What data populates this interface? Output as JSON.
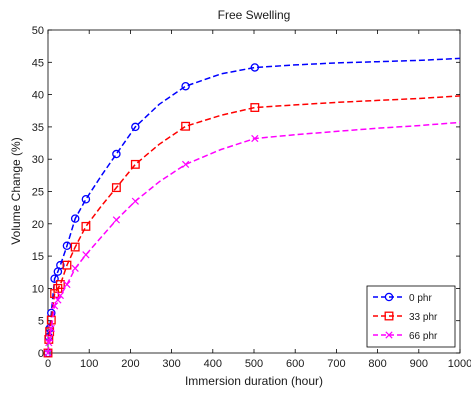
{
  "chart_data": {
    "type": "line",
    "title": "Free Swelling",
    "xlabel": "Immersion duration (hour)",
    "ylabel": "Volume Change (%)",
    "xlim": [
      0,
      1000
    ],
    "ylim": [
      0,
      50
    ],
    "xticks": [
      0,
      100,
      200,
      300,
      400,
      500,
      600,
      700,
      800,
      900,
      1000
    ],
    "yticks": [
      0,
      5,
      10,
      15,
      20,
      25,
      30,
      35,
      40,
      45,
      50
    ],
    "grid": false,
    "legend_position": "bottom-right",
    "series": [
      {
        "name": "0 phr",
        "color": "#0000ff",
        "marker": "circle",
        "line_style": "dashed",
        "x": [
          0,
          2,
          4,
          8,
          16,
          24,
          30,
          46,
          66,
          92,
          166,
          212,
          334,
          502
        ],
        "y": [
          0,
          2.5,
          3.8,
          6.2,
          11.5,
          12.6,
          13.6,
          16.6,
          20.8,
          23.8,
          30.8,
          35,
          41.3,
          44.2
        ],
        "curve_x": [
          0,
          2,
          4,
          8,
          16,
          24,
          30,
          46,
          66,
          92,
          130,
          166,
          212,
          270,
          334,
          420,
          502,
          600,
          700,
          800,
          900,
          1000
        ],
        "curve_y": [
          0,
          2.5,
          3.8,
          6.2,
          11.5,
          12.6,
          13.6,
          16.6,
          20.8,
          23.8,
          27.5,
          30.8,
          35,
          38.5,
          41.3,
          43.2,
          44.2,
          44.6,
          44.9,
          45.1,
          45.3,
          45.6
        ]
      },
      {
        "name": "33 phr",
        "color": "#ff0000",
        "marker": "square",
        "line_style": "dashed",
        "x": [
          0,
          2,
          4,
          8,
          16,
          24,
          30,
          46,
          66,
          92,
          166,
          212,
          334,
          502
        ],
        "y": [
          0,
          2.1,
          3.3,
          5.1,
          9.2,
          10,
          10.6,
          13.6,
          16.4,
          19.6,
          25.6,
          29.2,
          35.1,
          38
        ],
        "curve_x": [
          0,
          2,
          4,
          8,
          16,
          24,
          30,
          46,
          66,
          92,
          130,
          166,
          212,
          270,
          334,
          420,
          502,
          600,
          700,
          800,
          900,
          1000
        ],
        "curve_y": [
          0,
          2.1,
          3.3,
          5.1,
          9.2,
          10,
          10.6,
          13.6,
          16.4,
          19.6,
          22.8,
          25.6,
          29.2,
          32.3,
          35.1,
          36.8,
          38,
          38.4,
          38.8,
          39.1,
          39.4,
          39.8
        ]
      },
      {
        "name": "66 phr",
        "color": "#ff00ff",
        "marker": "x",
        "line_style": "dashed",
        "x": [
          0,
          2,
          4,
          8,
          16,
          24,
          30,
          46,
          66,
          92,
          166,
          212,
          334,
          502
        ],
        "y": [
          0,
          1.6,
          2.3,
          3.8,
          7.3,
          8.2,
          8.9,
          10.6,
          13.1,
          15.2,
          20.6,
          23.5,
          29.2,
          33.2
        ],
        "curve_x": [
          0,
          2,
          4,
          8,
          16,
          24,
          30,
          46,
          66,
          92,
          130,
          166,
          212,
          270,
          334,
          420,
          502,
          600,
          700,
          800,
          900,
          1000
        ],
        "curve_y": [
          0,
          1.6,
          2.3,
          3.8,
          7.3,
          8.2,
          8.9,
          10.6,
          13.1,
          15.2,
          18,
          20.6,
          23.5,
          26.5,
          29.2,
          31.5,
          33.2,
          33.8,
          34.3,
          34.8,
          35.2,
          35.7
        ]
      }
    ]
  }
}
